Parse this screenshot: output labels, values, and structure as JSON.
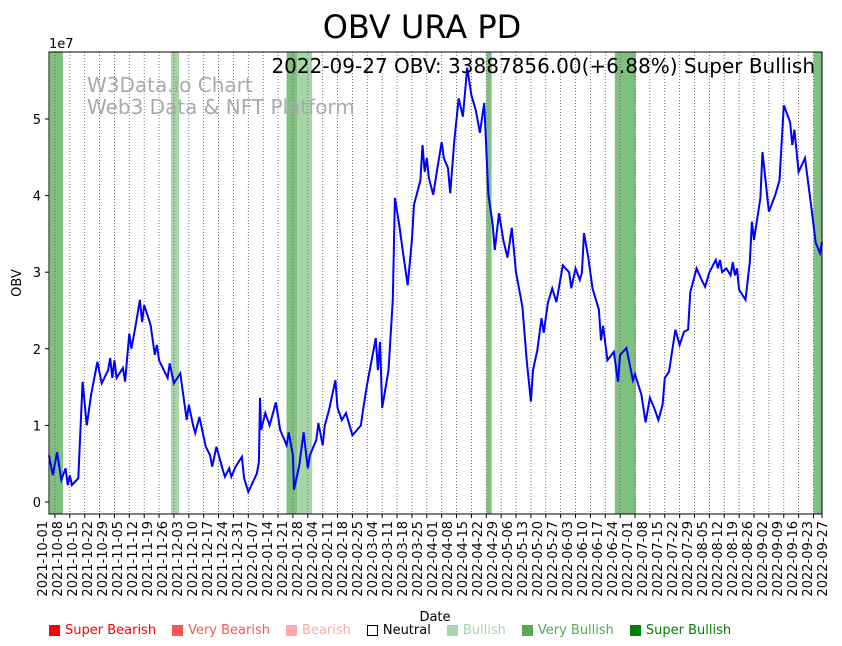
{
  "chart_data": {
    "type": "line",
    "title": "OBV URA PD",
    "annotation": "2022-09-27 OBV: 33887856.00(+6.88%) Super Bullish",
    "watermark": [
      "W3Data.io Chart",
      "Web3 Data & NFT Platform"
    ],
    "xlabel": "Date",
    "ylabel": "OBV",
    "y_scale_label": "1e7",
    "y_scale": 10000000,
    "start_date": "2021-10-01",
    "x_unit": "days since start_date",
    "xlim": [
      -2.8,
      361
    ],
    "ylim": [
      -0.157,
      5.875
    ],
    "yticks": [
      0,
      1,
      2,
      3,
      4,
      5
    ],
    "ytick_labels": [
      "0",
      "1",
      "2",
      "3",
      "4",
      "5"
    ],
    "xtick_days": [
      0,
      7,
      14,
      21,
      28,
      35,
      42,
      49,
      56,
      63,
      70,
      77,
      84,
      91,
      98,
      105,
      112,
      119,
      126,
      133,
      140,
      147,
      154,
      161,
      168,
      175,
      182,
      189,
      196,
      203,
      210,
      217,
      224,
      231,
      238,
      245,
      252,
      259,
      266,
      273,
      280,
      287,
      294,
      301,
      308,
      315,
      322,
      329,
      336,
      343,
      350,
      357,
      361
    ],
    "xtick_labels": [
      "2021-10-01",
      "2021-10-08",
      "2021-10-15",
      "2021-10-22",
      "2021-10-29",
      "2021-11-05",
      "2021-11-12",
      "2021-11-19",
      "2021-11-26",
      "2021-12-03",
      "2021-12-10",
      "2021-12-17",
      "2021-12-24",
      "2021-12-31",
      "2022-01-07",
      "2022-01-14",
      "2022-01-21",
      "2022-01-28",
      "2022-02-04",
      "2022-02-11",
      "2022-02-18",
      "2022-02-25",
      "2022-03-04",
      "2022-03-11",
      "2022-03-18",
      "2022-03-25",
      "2022-04-01",
      "2022-04-08",
      "2022-04-15",
      "2022-04-22",
      "2022-04-29",
      "2022-05-06",
      "2022-05-13",
      "2022-05-20",
      "2022-05-27",
      "2022-06-03",
      "2022-06-10",
      "2022-06-17",
      "2022-06-24",
      "2022-07-01",
      "2022-07-08",
      "2022-07-15",
      "2022-07-22",
      "2022-07-29",
      "2022-08-05",
      "2022-08-12",
      "2022-08-19",
      "2022-08-26",
      "2022-09-02",
      "2022-09-09",
      "2022-09-16",
      "2022-09-23",
      "2022-09-27"
    ],
    "grid": "x-dotted",
    "line_color": "#0000ff",
    "series": [
      {
        "name": "OBV",
        "points": [
          [
            -3,
            0.61
          ],
          [
            -1,
            0.35
          ],
          [
            1,
            0.65
          ],
          [
            3,
            0.29
          ],
          [
            5,
            0.44
          ],
          [
            6,
            0.22
          ],
          [
            7,
            0.35
          ],
          [
            8,
            0.22
          ],
          [
            11,
            0.31
          ],
          [
            13,
            1.57
          ],
          [
            15,
            1.0
          ],
          [
            17,
            1.4
          ],
          [
            20,
            1.83
          ],
          [
            22,
            1.55
          ],
          [
            25,
            1.72
          ],
          [
            26,
            1.88
          ],
          [
            27,
            1.62
          ],
          [
            28,
            1.85
          ],
          [
            29,
            1.62
          ],
          [
            32,
            1.75
          ],
          [
            33,
            1.57
          ],
          [
            35,
            2.2
          ],
          [
            36,
            2.0
          ],
          [
            38,
            2.31
          ],
          [
            40,
            2.64
          ],
          [
            41,
            2.35
          ],
          [
            42,
            2.57
          ],
          [
            45,
            2.31
          ],
          [
            47,
            1.92
          ],
          [
            48,
            2.05
          ],
          [
            49,
            1.85
          ],
          [
            53,
            1.62
          ],
          [
            54,
            1.81
          ],
          [
            56,
            1.55
          ],
          [
            59,
            1.68
          ],
          [
            62,
            1.07
          ],
          [
            63,
            1.27
          ],
          [
            65,
            1.0
          ],
          [
            66,
            0.9
          ],
          [
            68,
            1.11
          ],
          [
            71,
            0.72
          ],
          [
            73,
            0.61
          ],
          [
            74,
            0.46
          ],
          [
            76,
            0.72
          ],
          [
            79,
            0.42
          ],
          [
            80,
            0.33
          ],
          [
            82,
            0.44
          ],
          [
            83,
            0.33
          ],
          [
            85,
            0.46
          ],
          [
            88,
            0.59
          ],
          [
            89,
            0.31
          ],
          [
            91,
            0.13
          ],
          [
            95,
            0.37
          ],
          [
            96,
            0.52
          ],
          [
            96.5,
            1.36
          ],
          [
            97,
            0.94
          ],
          [
            99,
            1.16
          ],
          [
            101,
            1.0
          ],
          [
            104,
            1.3
          ],
          [
            106,
            0.94
          ],
          [
            109,
            0.74
          ],
          [
            110,
            0.91
          ],
          [
            112,
            0.61
          ],
          [
            112.5,
            0.16
          ],
          [
            115,
            0.48
          ],
          [
            117,
            0.91
          ],
          [
            119,
            0.44
          ],
          [
            120,
            0.61
          ],
          [
            123,
            0.81
          ],
          [
            124,
            1.03
          ],
          [
            126,
            0.74
          ],
          [
            127,
            1.0
          ],
          [
            129,
            1.2
          ],
          [
            132,
            1.59
          ],
          [
            133,
            1.23
          ],
          [
            135,
            1.07
          ],
          [
            137,
            1.16
          ],
          [
            140,
            0.87
          ],
          [
            144,
            1.0
          ],
          [
            145,
            1.2
          ],
          [
            147,
            1.55
          ],
          [
            151,
            2.14
          ],
          [
            152,
            1.72
          ],
          [
            153,
            2.09
          ],
          [
            154,
            1.23
          ],
          [
            157,
            1.72
          ],
          [
            159,
            2.64
          ],
          [
            160,
            3.97
          ],
          [
            162,
            3.62
          ],
          [
            164,
            3.22
          ],
          [
            166,
            2.83
          ],
          [
            168,
            3.42
          ],
          [
            169,
            3.88
          ],
          [
            172,
            4.2
          ],
          [
            173,
            4.66
          ],
          [
            174,
            4.31
          ],
          [
            175,
            4.49
          ],
          [
            176,
            4.23
          ],
          [
            178,
            4.01
          ],
          [
            180,
            4.36
          ],
          [
            182,
            4.7
          ],
          [
            183,
            4.49
          ],
          [
            185,
            4.36
          ],
          [
            186,
            4.03
          ],
          [
            188,
            4.73
          ],
          [
            190,
            5.27
          ],
          [
            192,
            5.03
          ],
          [
            194,
            5.67
          ],
          [
            196,
            5.31
          ],
          [
            198,
            5.12
          ],
          [
            200,
            4.82
          ],
          [
            202,
            5.21
          ],
          [
            204,
            4.01
          ],
          [
            206,
            3.62
          ],
          [
            207,
            3.29
          ],
          [
            209,
            3.77
          ],
          [
            211,
            3.42
          ],
          [
            213,
            3.19
          ],
          [
            215,
            3.58
          ],
          [
            217,
            3.0
          ],
          [
            220,
            2.55
          ],
          [
            222,
            1.85
          ],
          [
            224,
            1.31
          ],
          [
            225,
            1.72
          ],
          [
            227,
            1.98
          ],
          [
            229,
            2.4
          ],
          [
            230,
            2.21
          ],
          [
            232,
            2.6
          ],
          [
            234,
            2.79
          ],
          [
            236,
            2.61
          ],
          [
            239,
            3.09
          ],
          [
            242,
            3.0
          ],
          [
            243,
            2.79
          ],
          [
            245,
            3.05
          ],
          [
            247,
            2.9
          ],
          [
            248,
            2.99
          ],
          [
            249,
            3.51
          ],
          [
            251,
            3.19
          ],
          [
            253,
            2.79
          ],
          [
            256,
            2.51
          ],
          [
            257,
            2.11
          ],
          [
            258,
            2.3
          ],
          [
            260,
            1.85
          ],
          [
            263,
            1.96
          ],
          [
            265,
            1.57
          ],
          [
            266,
            1.92
          ],
          [
            269,
            2.01
          ],
          [
            272,
            1.59
          ],
          [
            273,
            1.67
          ],
          [
            276,
            1.4
          ],
          [
            278,
            1.04
          ],
          [
            280,
            1.36
          ],
          [
            282,
            1.23
          ],
          [
            284,
            1.07
          ],
          [
            286,
            1.27
          ],
          [
            287,
            1.62
          ],
          [
            289,
            1.7
          ],
          [
            292,
            2.25
          ],
          [
            294,
            2.05
          ],
          [
            296,
            2.22
          ],
          [
            298,
            2.25
          ],
          [
            299,
            2.74
          ],
          [
            302,
            3.05
          ],
          [
            304,
            2.92
          ],
          [
            306,
            2.81
          ],
          [
            308,
            3.0
          ],
          [
            311,
            3.16
          ],
          [
            312,
            3.05
          ],
          [
            313,
            3.16
          ],
          [
            314,
            3.0
          ],
          [
            316,
            3.05
          ],
          [
            318,
            2.96
          ],
          [
            319,
            3.13
          ],
          [
            320,
            2.96
          ],
          [
            321,
            3.05
          ],
          [
            322,
            2.77
          ],
          [
            325,
            2.64
          ],
          [
            327,
            3.13
          ],
          [
            328,
            3.66
          ],
          [
            329,
            3.42
          ],
          [
            332,
            3.97
          ],
          [
            333,
            4.57
          ],
          [
            336,
            3.79
          ],
          [
            339,
            4.01
          ],
          [
            341,
            4.2
          ],
          [
            343,
            5.18
          ],
          [
            346,
            4.96
          ],
          [
            347,
            4.66
          ],
          [
            348,
            4.86
          ],
          [
            350,
            4.31
          ],
          [
            353,
            4.49
          ],
          [
            356,
            3.84
          ],
          [
            358,
            3.39
          ],
          [
            360,
            3.25
          ],
          [
            361,
            3.39
          ]
        ]
      }
    ],
    "shaded_regions": [
      {
        "from": -2.4,
        "to": 3.8,
        "category": "Very Bullish"
      },
      {
        "from": 54.6,
        "to": 58.4,
        "category": "Bullish"
      },
      {
        "from": 109,
        "to": 114,
        "category": "Very Bullish"
      },
      {
        "from": 114,
        "to": 121,
        "category": "Bullish"
      },
      {
        "from": 203,
        "to": 205.5,
        "category": "Very Bullish"
      },
      {
        "from": 263.5,
        "to": 273.4,
        "category": "Very Bullish"
      },
      {
        "from": 357,
        "to": 361,
        "category": "Very Bullish"
      }
    ],
    "shade_colors": {
      "Bullish": "#a8d5a8",
      "Very Bullish": "#7fbf7f"
    },
    "legend": [
      {
        "label": "Super Bearish",
        "color": "#ff0000"
      },
      {
        "label": "Very Bearish",
        "color": "#ff5555"
      },
      {
        "label": "Bearish",
        "color": "#ffaaaa"
      },
      {
        "label": "Neutral",
        "color": "#ffffff"
      },
      {
        "label": "Bullish",
        "color": "#aad4aa"
      },
      {
        "label": "Very Bullish",
        "color": "#55aa55"
      },
      {
        "label": "Super Bullish",
        "color": "#008000"
      }
    ],
    "legend_placement": "bottom"
  }
}
